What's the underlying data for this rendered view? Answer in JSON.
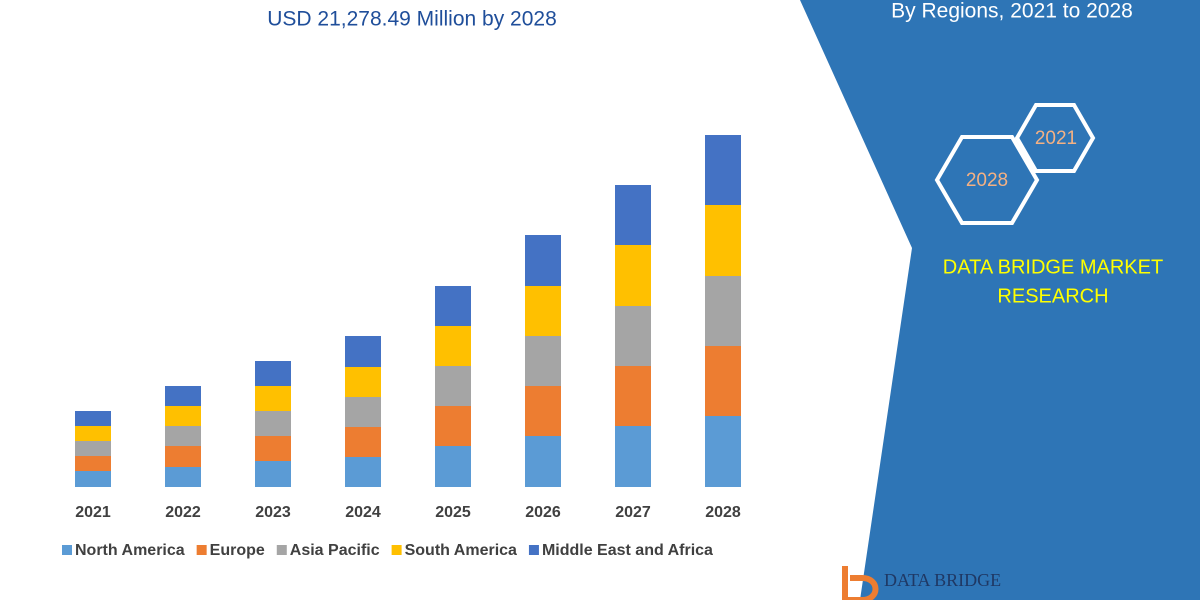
{
  "chart_data": {
    "type": "bar",
    "stacked": true,
    "title": "USD 21,278.49 Million by 2028",
    "categories": [
      "2021",
      "2022",
      "2023",
      "2024",
      "2025",
      "2026",
      "2027",
      "2028"
    ],
    "series": [
      {
        "name": "North America",
        "color": "#5b9bd5",
        "values": [
          16,
          20,
          26,
          30,
          41,
          51,
          61,
          71
        ]
      },
      {
        "name": "Europe",
        "color": "#ed7d31",
        "values": [
          15,
          21,
          25,
          30,
          40,
          50,
          60,
          70
        ]
      },
      {
        "name": "Asia Pacific",
        "color": "#a5a5a5",
        "values": [
          15,
          20,
          25,
          30,
          40,
          50,
          60,
          70
        ]
      },
      {
        "name": "South America",
        "color": "#ffc000",
        "values": [
          15,
          20,
          25,
          30,
          40,
          50,
          61,
          71
        ]
      },
      {
        "name": "Middle East and Africa",
        "color": "#4472c4",
        "values": [
          15,
          20,
          25,
          31,
          40,
          51,
          60,
          70
        ]
      }
    ],
    "legend": "bottom"
  },
  "panel": {
    "subtitle": "By Regions, 2021 to 2028",
    "hexagons": [
      "2021",
      "2028"
    ],
    "brand": [
      "DATA BRIDGE MARKET",
      "RESEARCH"
    ],
    "logo": "DATA BRIDGE"
  }
}
